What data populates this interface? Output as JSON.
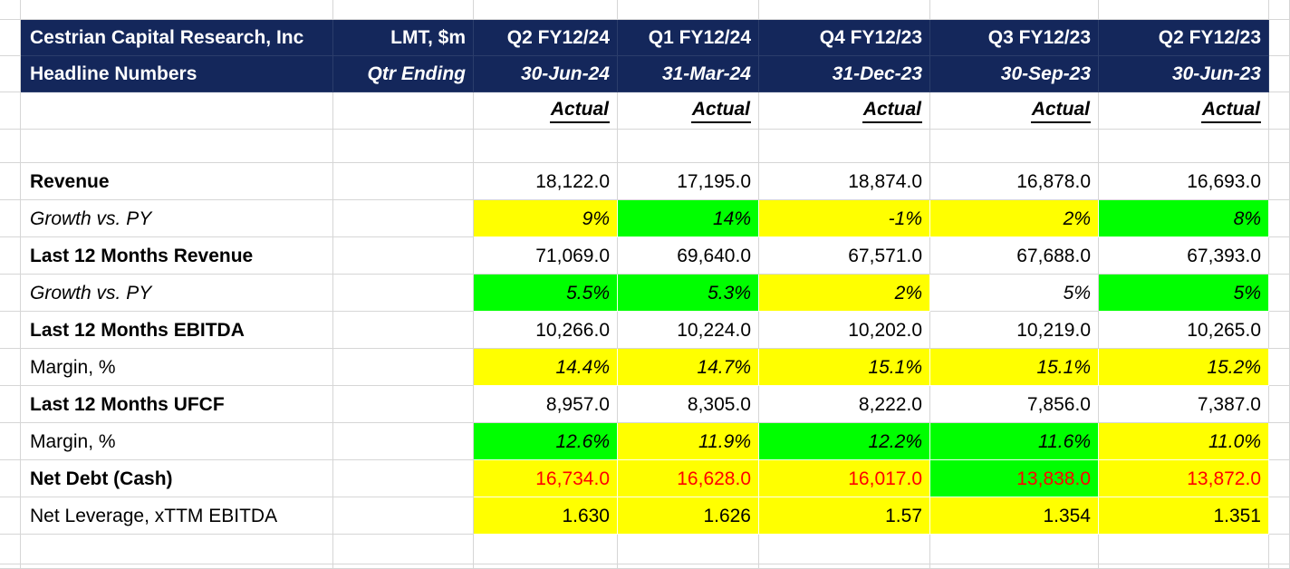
{
  "sheet": {
    "title": "Cestrian Capital Research, Inc",
    "subtitle": "Headline Numbers",
    "unit_label": "LMT, $m",
    "qtr_ending_label": "Qtr Ending",
    "colors": {
      "header_bg": "#14275B",
      "header_text": "#FFFFFF",
      "highlight_yellow": "#FFFF00",
      "highlight_green": "#00FF00",
      "negative_text": "#FF0000",
      "gridline": "#D6D6D6"
    },
    "columns": [
      {
        "period": "Q2 FY12/24",
        "date": "30-Jun-24",
        "status": "Actual"
      },
      {
        "period": "Q1 FY12/24",
        "date": "31-Mar-24",
        "status": "Actual"
      },
      {
        "period": "Q4 FY12/23",
        "date": "31-Dec-23",
        "status": "Actual"
      },
      {
        "period": "Q3 FY12/23",
        "date": "30-Sep-23",
        "status": "Actual"
      },
      {
        "period": "Q2 FY12/23",
        "date": "30-Jun-23",
        "status": "Actual"
      }
    ],
    "rows": [
      {
        "label": "Revenue",
        "label_style": "bold",
        "value_style": "regular",
        "value_color": "black",
        "values": [
          "18,122.0",
          "17,195.0",
          "18,874.0",
          "16,878.0",
          "16,693.0"
        ],
        "fills": [
          "none",
          "none",
          "none",
          "none",
          "none"
        ]
      },
      {
        "label": "Growth vs. PY",
        "label_style": "italic",
        "value_style": "italic",
        "value_color": "black",
        "values": [
          "9%",
          "14%",
          "-1%",
          "2%",
          "8%"
        ],
        "fills": [
          "yellow",
          "green",
          "yellow",
          "yellow",
          "green"
        ]
      },
      {
        "label": "Last 12 Months Revenue",
        "label_style": "bold",
        "value_style": "regular",
        "value_color": "black",
        "values": [
          "71,069.0",
          "69,640.0",
          "67,571.0",
          "67,688.0",
          "67,393.0"
        ],
        "fills": [
          "none",
          "none",
          "none",
          "none",
          "none"
        ]
      },
      {
        "label": "Growth vs. PY",
        "label_style": "italic",
        "value_style": "italic",
        "value_color": "black",
        "values": [
          "5.5%",
          "5.3%",
          "2%",
          "5%",
          "5%"
        ],
        "fills": [
          "green",
          "green",
          "yellow",
          "none",
          "green"
        ]
      },
      {
        "label": "Last 12 Months EBITDA",
        "label_style": "bold",
        "value_style": "regular",
        "value_color": "black",
        "values": [
          "10,266.0",
          "10,224.0",
          "10,202.0",
          "10,219.0",
          "10,265.0"
        ],
        "fills": [
          "none",
          "none",
          "none",
          "none",
          "none"
        ]
      },
      {
        "label": "Margin, %",
        "label_style": "regular",
        "value_style": "italic",
        "value_color": "black",
        "values": [
          "14.4%",
          "14.7%",
          "15.1%",
          "15.1%",
          "15.2%"
        ],
        "fills": [
          "yellow",
          "yellow",
          "yellow",
          "yellow",
          "yellow"
        ]
      },
      {
        "label": "Last 12 Months UFCF",
        "label_style": "bold",
        "value_style": "regular",
        "value_color": "black",
        "values": [
          "8,957.0",
          "8,305.0",
          "8,222.0",
          "7,856.0",
          "7,387.0"
        ],
        "fills": [
          "none",
          "none",
          "none",
          "none",
          "none"
        ]
      },
      {
        "label": "Margin, %",
        "label_style": "regular",
        "value_style": "italic",
        "value_color": "black",
        "values": [
          "12.6%",
          "11.9%",
          "12.2%",
          "11.6%",
          "11.0%"
        ],
        "fills": [
          "green",
          "yellow",
          "green",
          "green",
          "yellow"
        ]
      },
      {
        "label": "Net Debt (Cash)",
        "label_style": "bold",
        "value_style": "regular",
        "value_color": "red",
        "values": [
          "16,734.0",
          "16,628.0",
          "16,017.0",
          "13,838.0",
          "13,872.0"
        ],
        "fills": [
          "yellow",
          "yellow",
          "yellow",
          "green",
          "yellow"
        ]
      },
      {
        "label": "Net Leverage, xTTM EBITDA",
        "label_style": "regular",
        "value_style": "regular",
        "value_color": "black",
        "values": [
          "1.630",
          "1.626",
          "1.57",
          "1.354",
          "1.351"
        ],
        "fills": [
          "yellow",
          "yellow",
          "yellow",
          "yellow",
          "yellow"
        ]
      }
    ]
  }
}
